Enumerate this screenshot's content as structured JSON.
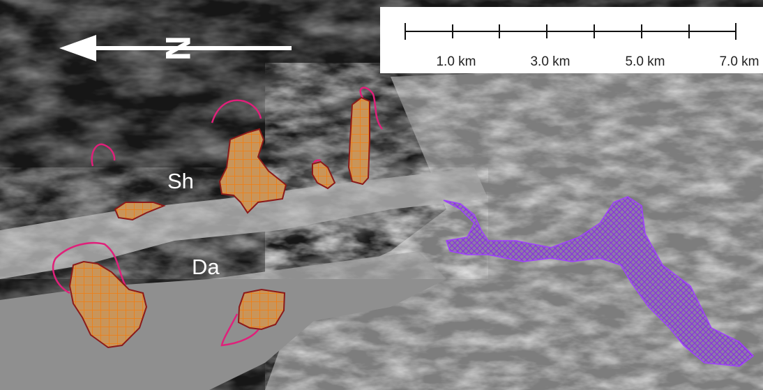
{
  "north_arrow": {
    "label": "N"
  },
  "scale_bar": {
    "labels": [
      "1.0 km",
      "3.0 km",
      "5.0 km",
      "7.0 km"
    ]
  },
  "terrain_labels": [
    {
      "text": "Sh"
    },
    {
      "text": "Da"
    }
  ]
}
